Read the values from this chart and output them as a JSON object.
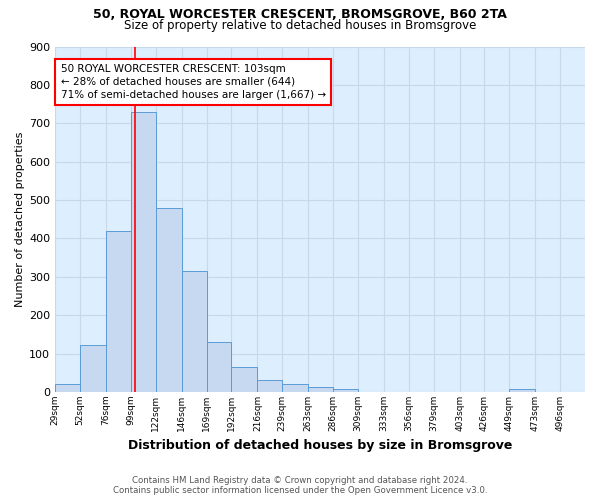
{
  "title1": "50, ROYAL WORCESTER CRESCENT, BROMSGROVE, B60 2TA",
  "title2": "Size of property relative to detached houses in Bromsgrove",
  "xlabel": "Distribution of detached houses by size in Bromsgrove",
  "ylabel": "Number of detached properties",
  "footnote1": "Contains HM Land Registry data © Crown copyright and database right 2024.",
  "footnote2": "Contains public sector information licensed under the Open Government Licence v3.0.",
  "bin_edges": [
    29,
    52,
    76,
    99,
    122,
    146,
    169,
    192,
    216,
    239,
    263,
    286,
    309,
    333,
    356,
    379,
    403,
    426,
    449,
    473,
    496,
    519
  ],
  "bar_heights": [
    20,
    122,
    420,
    730,
    480,
    315,
    130,
    65,
    30,
    22,
    12,
    8,
    0,
    0,
    0,
    0,
    0,
    0,
    8,
    0,
    0
  ],
  "bar_color": "#c6d9f0",
  "bar_edge_color": "#5b9bd5",
  "red_line_x": 103,
  "annotation_text": "50 ROYAL WORCESTER CRESCENT: 103sqm\n← 28% of detached houses are smaller (644)\n71% of semi-detached houses are larger (1,667) →",
  "ylim": [
    0,
    900
  ],
  "yticks": [
    0,
    100,
    200,
    300,
    400,
    500,
    600,
    700,
    800,
    900
  ],
  "x_tick_labels": [
    "29sqm",
    "52sqm",
    "76sqm",
    "99sqm",
    "122sqm",
    "146sqm",
    "169sqm",
    "192sqm",
    "216sqm",
    "239sqm",
    "263sqm",
    "286sqm",
    "309sqm",
    "333sqm",
    "356sqm",
    "379sqm",
    "403sqm",
    "426sqm",
    "449sqm",
    "473sqm",
    "496sqm"
  ],
  "x_tick_positions": [
    29,
    52,
    76,
    99,
    122,
    146,
    169,
    192,
    216,
    239,
    263,
    286,
    309,
    333,
    356,
    379,
    403,
    426,
    449,
    473,
    496
  ],
  "grid_color": "#c8d8e8",
  "bg_color": "#ddeeff"
}
